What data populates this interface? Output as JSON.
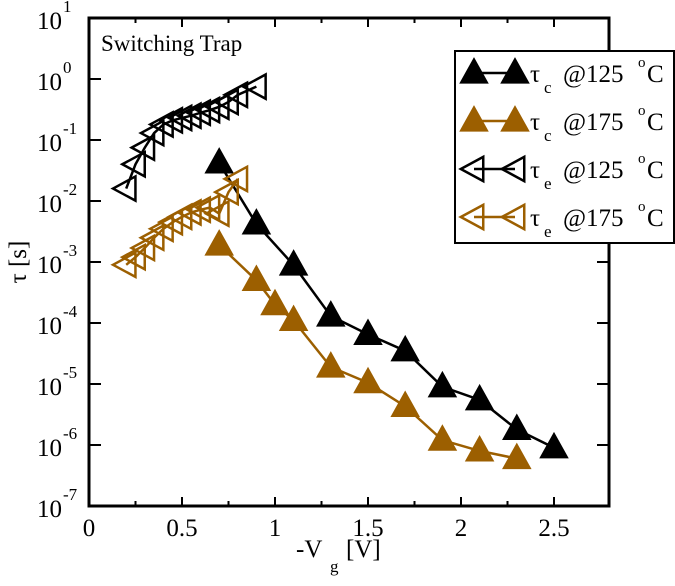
{
  "chart_data": {
    "type": "line",
    "title": "",
    "annotation": "Switching Trap",
    "xlabel": "-V",
    "xlabel_sub": "g",
    "xlabel_unit": "[V]",
    "ylabel": "τ [s]",
    "xlim": [
      0,
      2.75
    ],
    "ylim_log10": [
      -7,
      1
    ],
    "yscale": "log",
    "grid": false,
    "x_ticks": [
      {
        "value": 0,
        "label": "0"
      },
      {
        "value": 0.5,
        "label": "0.5"
      },
      {
        "value": 1,
        "label": "1"
      },
      {
        "value": 1.5,
        "label": "1.5"
      },
      {
        "value": 2,
        "label": "2"
      },
      {
        "value": 2.5,
        "label": "2.5"
      }
    ],
    "y_ticks": [
      {
        "exp": 1,
        "base": "10",
        "sup": "1"
      },
      {
        "exp": 0,
        "base": "10",
        "sup": "0"
      },
      {
        "exp": -1,
        "base": "10",
        "sup": "-1"
      },
      {
        "exp": -2,
        "base": "10",
        "sup": "-2"
      },
      {
        "exp": -3,
        "base": "10",
        "sup": "-3"
      },
      {
        "exp": -4,
        "base": "10",
        "sup": "-4"
      },
      {
        "exp": -5,
        "base": "10",
        "sup": "-5"
      },
      {
        "exp": -6,
        "base": "10",
        "sup": "-6"
      },
      {
        "exp": -7,
        "base": "10",
        "sup": "-7"
      }
    ],
    "legend_position": "top-right",
    "series": [
      {
        "name": "τc @125°C",
        "sym": "τ",
        "sub": "c",
        "temp": "@125",
        "deg": "o",
        "unit": "C",
        "color": "#000000",
        "marker": "triangle-up-filled",
        "x": [
          0.7,
          0.9,
          1.1,
          1.3,
          1.5,
          1.7,
          1.9,
          2.1,
          2.3,
          2.5
        ],
        "y": [
          0.042,
          0.0042,
          0.00089,
          0.00013,
          6.5e-05,
          3.5e-05,
          9e-06,
          5.5e-06,
          1.8e-06,
          9e-07
        ]
      },
      {
        "name": "τc @175°C",
        "sym": "τ",
        "sub": "c",
        "temp": "@175",
        "deg": "o",
        "unit": "C",
        "color": "#9c5f00",
        "marker": "triangle-up-filled",
        "x": [
          0.7,
          0.9,
          1.0,
          1.1,
          1.3,
          1.5,
          1.7,
          1.9,
          2.1,
          2.3
        ],
        "y": [
          0.0019,
          0.0005,
          0.0002,
          0.00011,
          1.9e-05,
          1.05e-05,
          4.3e-06,
          1.2e-06,
          8e-07,
          6e-07
        ]
      },
      {
        "name": "τe @125°C",
        "sym": "τ",
        "sub": "e",
        "temp": "@125",
        "deg": "o",
        "unit": "C",
        "color": "#000000",
        "marker": "triangle-left-open",
        "x": [
          0.2,
          0.25,
          0.3,
          0.35,
          0.4,
          0.45,
          0.5,
          0.55,
          0.6,
          0.65,
          0.7,
          0.75,
          0.8,
          0.9
        ],
        "y": [
          0.016,
          0.04,
          0.075,
          0.13,
          0.18,
          0.21,
          0.23,
          0.25,
          0.28,
          0.31,
          0.35,
          0.42,
          0.55,
          0.75
        ]
      },
      {
        "name": "τe @175°C",
        "sym": "τ",
        "sub": "e",
        "temp": "@175",
        "deg": "o",
        "unit": "C",
        "color": "#9c5f00",
        "marker": "triangle-left-open",
        "x": [
          0.2,
          0.25,
          0.3,
          0.35,
          0.4,
          0.45,
          0.5,
          0.55,
          0.6,
          0.65,
          0.7,
          0.75,
          0.8
        ],
        "y": [
          0.0009,
          0.0012,
          0.0017,
          0.0025,
          0.0035,
          0.0045,
          0.0055,
          0.0065,
          0.0072,
          0.0078,
          0.0062,
          0.014,
          0.023
        ]
      }
    ]
  }
}
